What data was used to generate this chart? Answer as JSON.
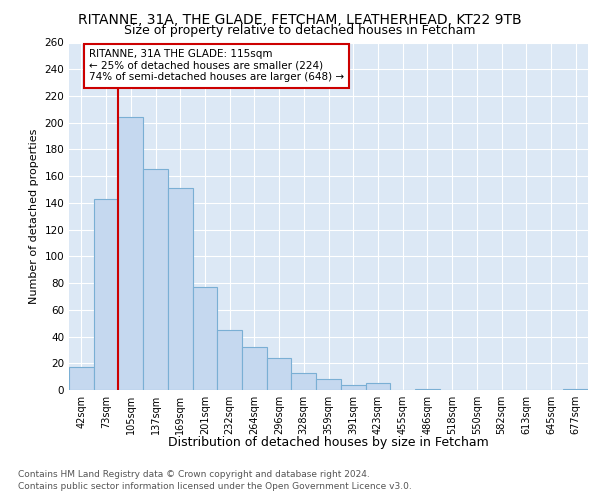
{
  "title": "RITANNE, 31A, THE GLADE, FETCHAM, LEATHERHEAD, KT22 9TB",
  "subtitle": "Size of property relative to detached houses in Fetcham",
  "xlabel": "Distribution of detached houses by size in Fetcham",
  "ylabel": "Number of detached properties",
  "categories": [
    "42sqm",
    "73sqm",
    "105sqm",
    "137sqm",
    "169sqm",
    "201sqm",
    "232sqm",
    "264sqm",
    "296sqm",
    "328sqm",
    "359sqm",
    "391sqm",
    "423sqm",
    "455sqm",
    "486sqm",
    "518sqm",
    "550sqm",
    "582sqm",
    "613sqm",
    "645sqm",
    "677sqm"
  ],
  "values": [
    17,
    143,
    204,
    165,
    151,
    77,
    45,
    32,
    24,
    13,
    8,
    4,
    5,
    0,
    1,
    0,
    0,
    0,
    0,
    0,
    1
  ],
  "bar_color": "#c5d8ef",
  "bar_edge_color": "#7aafd4",
  "vline_color": "#cc0000",
  "vline_x_index": 2,
  "annotation_title": "RITANNE, 31A THE GLADE: 115sqm",
  "annotation_line1": "← 25% of detached houses are smaller (224)",
  "annotation_line2": "74% of semi-detached houses are larger (648) →",
  "annotation_box_facecolor": "#ffffff",
  "annotation_box_edgecolor": "#cc0000",
  "ylim": [
    0,
    260
  ],
  "yticks": [
    0,
    20,
    40,
    60,
    80,
    100,
    120,
    140,
    160,
    180,
    200,
    220,
    240,
    260
  ],
  "plot_bg_color": "#dce8f5",
  "fig_bg_color": "#ffffff",
  "grid_color": "#ffffff",
  "footer_line1": "Contains HM Land Registry data © Crown copyright and database right 2024.",
  "footer_line2": "Contains public sector information licensed under the Open Government Licence v3.0.",
  "title_fontsize": 10,
  "subtitle_fontsize": 9,
  "ylabel_fontsize": 8,
  "xlabel_fontsize": 9,
  "tick_fontsize": 7,
  "footer_fontsize": 6.5,
  "annotation_fontsize": 7.5
}
